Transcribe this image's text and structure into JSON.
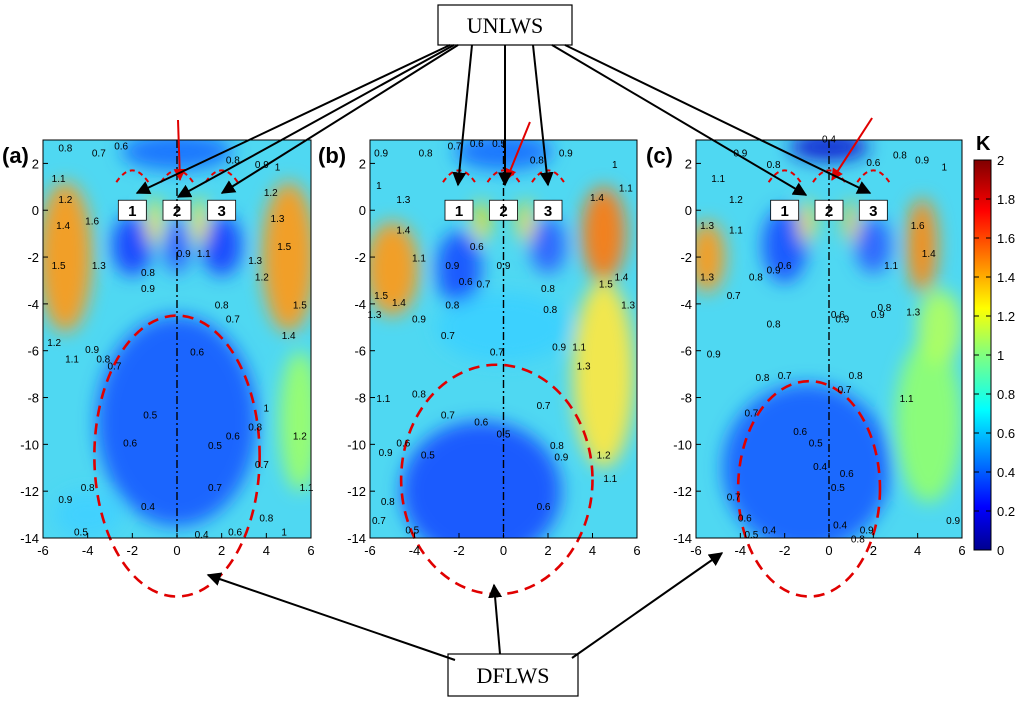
{
  "figure": {
    "top_label": "UNLWS",
    "bottom_label": "DFLWS"
  },
  "chart_data": [
    {
      "type": "heatmap",
      "panel_label": "(a)",
      "xlim": [
        -6,
        6
      ],
      "ylim": [
        -14,
        3
      ],
      "x_ticks": [
        -6,
        -4,
        -2,
        0,
        2,
        4,
        6
      ],
      "y_ticks": [
        2,
        0,
        -2,
        -4,
        -6,
        -8,
        -10,
        -12,
        -14
      ],
      "building_labels": [
        "1",
        "2",
        "3"
      ],
      "building_x": [
        -2,
        0,
        2
      ],
      "contour_labels": [
        {
          "x": -5.0,
          "y": 2.5,
          "text": "0.8"
        },
        {
          "x": -3.5,
          "y": 2.3,
          "text": "0.7"
        },
        {
          "x": -2.5,
          "y": 2.6,
          "text": "0.6"
        },
        {
          "x": -5.3,
          "y": 1.2,
          "text": "1.1"
        },
        {
          "x": -5.0,
          "y": 0.3,
          "text": "1.2"
        },
        {
          "x": -5.1,
          "y": -0.8,
          "text": "1.4"
        },
        {
          "x": -3.8,
          "y": -0.6,
          "text": "1.6"
        },
        {
          "x": -5.3,
          "y": -2.5,
          "text": "1.5"
        },
        {
          "x": -3.5,
          "y": -2.5,
          "text": "1.3"
        },
        {
          "x": -1.3,
          "y": -2.8,
          "text": "0.8"
        },
        {
          "x": -1.3,
          "y": -3.5,
          "text": "0.9"
        },
        {
          "x": 0.3,
          "y": -2.0,
          "text": "0.9"
        },
        {
          "x": 1.2,
          "y": -2.0,
          "text": "1.1"
        },
        {
          "x": 2.5,
          "y": 2.0,
          "text": "0.8"
        },
        {
          "x": 3.8,
          "y": 1.8,
          "text": "0.9"
        },
        {
          "x": 4.5,
          "y": 1.7,
          "text": "1"
        },
        {
          "x": 4.2,
          "y": 0.6,
          "text": "1.2"
        },
        {
          "x": 4.5,
          "y": -0.5,
          "text": "1.3"
        },
        {
          "x": 4.8,
          "y": -1.7,
          "text": "1.5"
        },
        {
          "x": 3.5,
          "y": -2.3,
          "text": "1.3"
        },
        {
          "x": 3.8,
          "y": -3.0,
          "text": "1.2"
        },
        {
          "x": 5.5,
          "y": -4.2,
          "text": "1.5"
        },
        {
          "x": 5.0,
          "y": -5.5,
          "text": "1.4"
        },
        {
          "x": 2.0,
          "y": -4.2,
          "text": "0.8"
        },
        {
          "x": 2.5,
          "y": -4.8,
          "text": "0.7"
        },
        {
          "x": 0.9,
          "y": -6.2,
          "text": "0.6"
        },
        {
          "x": -5.5,
          "y": -5.8,
          "text": "1.2"
        },
        {
          "x": -4.7,
          "y": -6.5,
          "text": "1.1"
        },
        {
          "x": -3.8,
          "y": -6.1,
          "text": "0.9"
        },
        {
          "x": -3.3,
          "y": -6.5,
          "text": "0.8"
        },
        {
          "x": -2.8,
          "y": -6.8,
          "text": "0.7"
        },
        {
          "x": -1.2,
          "y": -8.9,
          "text": "0.5"
        },
        {
          "x": -2.1,
          "y": -10.1,
          "text": "0.6"
        },
        {
          "x": 1.7,
          "y": -10.2,
          "text": "0.5"
        },
        {
          "x": 2.5,
          "y": -9.8,
          "text": "0.6"
        },
        {
          "x": 3.5,
          "y": -9.4,
          "text": "0.8"
        },
        {
          "x": 4.0,
          "y": -8.6,
          "text": "1"
        },
        {
          "x": 5.5,
          "y": -9.8,
          "text": "1.2"
        },
        {
          "x": 3.8,
          "y": -11.0,
          "text": "0.7"
        },
        {
          "x": 1.7,
          "y": -12.0,
          "text": "0.7"
        },
        {
          "x": -5.0,
          "y": -12.5,
          "text": "0.9"
        },
        {
          "x": -4.0,
          "y": -12.0,
          "text": "0.8"
        },
        {
          "x": -1.3,
          "y": -12.8,
          "text": "0.4"
        },
        {
          "x": 1.1,
          "y": -14.0,
          "text": "0.4"
        },
        {
          "x": 2.6,
          "y": -13.9,
          "text": "0.6"
        },
        {
          "x": 4.0,
          "y": -13.3,
          "text": "0.8"
        },
        {
          "x": 4.8,
          "y": -13.9,
          "text": "1"
        },
        {
          "x": 5.8,
          "y": -12.0,
          "text": "1.1"
        },
        {
          "x": -4.3,
          "y": -13.9,
          "text": "0.5"
        }
      ]
    },
    {
      "type": "heatmap",
      "panel_label": "(b)",
      "xlim": [
        -6,
        6
      ],
      "ylim": [
        -14,
        3
      ],
      "x_ticks": [
        -6,
        -4,
        -2,
        0,
        2,
        4,
        6
      ],
      "y_ticks": [
        2,
        0,
        -2,
        -4,
        -6,
        -8,
        -10,
        -12,
        -14
      ],
      "building_labels": [
        "1",
        "2",
        "3"
      ],
      "building_x": [
        -2,
        0,
        2
      ],
      "contour_labels": [
        {
          "x": -5.5,
          "y": 2.3,
          "text": "0.9"
        },
        {
          "x": -3.5,
          "y": 2.3,
          "text": "0.8"
        },
        {
          "x": -2.2,
          "y": 2.6,
          "text": "0.7"
        },
        {
          "x": -1.2,
          "y": 2.7,
          "text": "0.6"
        },
        {
          "x": -0.2,
          "y": 2.7,
          "text": "0.5"
        },
        {
          "x": 1.5,
          "y": 2.0,
          "text": "0.8"
        },
        {
          "x": 2.8,
          "y": 2.3,
          "text": "0.9"
        },
        {
          "x": 5.0,
          "y": 1.8,
          "text": "1"
        },
        {
          "x": 5.5,
          "y": 0.8,
          "text": "1.1"
        },
        {
          "x": -5.6,
          "y": 0.9,
          "text": "1"
        },
        {
          "x": -4.5,
          "y": 0.3,
          "text": "1.3"
        },
        {
          "x": -4.5,
          "y": -1.0,
          "text": "1.4"
        },
        {
          "x": -3.8,
          "y": -2.2,
          "text": "1.1"
        },
        {
          "x": -2.3,
          "y": -2.5,
          "text": "0.9"
        },
        {
          "x": -1.2,
          "y": -1.7,
          "text": "0.6"
        },
        {
          "x": -1.7,
          "y": -3.2,
          "text": "0.6"
        },
        {
          "x": -0.9,
          "y": -3.3,
          "text": "0.7"
        },
        {
          "x": 0.0,
          "y": -2.5,
          "text": "0.9"
        },
        {
          "x": 2.0,
          "y": -3.5,
          "text": "0.8"
        },
        {
          "x": 4.2,
          "y": 0.4,
          "text": "1.4"
        },
        {
          "x": 4.6,
          "y": -3.3,
          "text": "1.5"
        },
        {
          "x": 5.3,
          "y": -3.0,
          "text": "1.4"
        },
        {
          "x": 5.6,
          "y": -4.2,
          "text": "1.3"
        },
        {
          "x": -5.5,
          "y": -3.8,
          "text": "1.5"
        },
        {
          "x": -4.7,
          "y": -4.1,
          "text": "1.4"
        },
        {
          "x": -5.8,
          "y": -4.6,
          "text": "1.3"
        },
        {
          "x": -3.8,
          "y": -4.8,
          "text": "0.9"
        },
        {
          "x": -2.5,
          "y": -5.5,
          "text": "0.7"
        },
        {
          "x": -2.3,
          "y": -4.2,
          "text": "0.8"
        },
        {
          "x": -0.3,
          "y": -6.2,
          "text": "0.7"
        },
        {
          "x": 2.1,
          "y": -4.4,
          "text": "0.8"
        },
        {
          "x": 2.5,
          "y": -6.0,
          "text": "0.9"
        },
        {
          "x": 3.4,
          "y": -6.0,
          "text": "1.1"
        },
        {
          "x": 3.6,
          "y": -6.8,
          "text": "1.3"
        },
        {
          "x": -5.4,
          "y": -8.2,
          "text": "1.1"
        },
        {
          "x": -3.8,
          "y": -8.0,
          "text": "0.8"
        },
        {
          "x": -2.5,
          "y": -8.9,
          "text": "0.7"
        },
        {
          "x": -1.0,
          "y": -9.2,
          "text": "0.6"
        },
        {
          "x": 0.0,
          "y": -9.7,
          "text": "0.5"
        },
        {
          "x": 1.8,
          "y": -8.5,
          "text": "0.7"
        },
        {
          "x": 2.4,
          "y": -10.2,
          "text": "0.8"
        },
        {
          "x": 2.6,
          "y": -10.7,
          "text": "0.9"
        },
        {
          "x": 4.5,
          "y": -10.6,
          "text": "1.2"
        },
        {
          "x": 4.8,
          "y": -11.6,
          "text": "1.1"
        },
        {
          "x": -5.3,
          "y": -10.5,
          "text": "0.9"
        },
        {
          "x": -4.5,
          "y": -10.1,
          "text": "0.6"
        },
        {
          "x": -3.4,
          "y": -10.6,
          "text": "0.5"
        },
        {
          "x": -5.2,
          "y": -12.6,
          "text": "0.8"
        },
        {
          "x": -5.6,
          "y": -13.4,
          "text": "0.7"
        },
        {
          "x": -4.1,
          "y": -13.8,
          "text": "0.5"
        },
        {
          "x": 1.8,
          "y": -12.8,
          "text": "0.6"
        }
      ]
    },
    {
      "type": "heatmap",
      "panel_label": "(c)",
      "xlim": [
        -6,
        6
      ],
      "ylim": [
        -14,
        3
      ],
      "x_ticks": [
        -6,
        -4,
        -2,
        0,
        2,
        4,
        6
      ],
      "y_ticks": [
        2,
        0,
        -2,
        -4,
        -6,
        -8,
        -10,
        -12,
        -14
      ],
      "building_labels": [
        "1",
        "2",
        "3"
      ],
      "building_x": [
        -2,
        0,
        2
      ],
      "contour_labels": [
        {
          "x": 0.0,
          "y": 2.9,
          "text": "0.4"
        },
        {
          "x": -4.0,
          "y": 2.3,
          "text": "0.9"
        },
        {
          "x": -2.5,
          "y": 1.8,
          "text": "0.8"
        },
        {
          "x": 2.0,
          "y": 1.9,
          "text": "0.6"
        },
        {
          "x": 3.2,
          "y": 2.2,
          "text": "0.8"
        },
        {
          "x": 4.2,
          "y": 2.0,
          "text": "0.9"
        },
        {
          "x": 5.2,
          "y": 1.7,
          "text": "1"
        },
        {
          "x": -5.0,
          "y": 1.2,
          "text": "1.1"
        },
        {
          "x": -4.2,
          "y": 0.3,
          "text": "1.2"
        },
        {
          "x": -5.5,
          "y": -0.8,
          "text": "1.3"
        },
        {
          "x": -4.2,
          "y": -1.0,
          "text": "1.1"
        },
        {
          "x": -5.5,
          "y": -3.0,
          "text": "1.3"
        },
        {
          "x": -3.3,
          "y": -3.0,
          "text": "0.8"
        },
        {
          "x": -2.5,
          "y": -2.7,
          "text": "0.9"
        },
        {
          "x": -2.0,
          "y": -2.5,
          "text": "0.6"
        },
        {
          "x": -4.3,
          "y": -3.8,
          "text": "0.7"
        },
        {
          "x": 2.8,
          "y": -2.5,
          "text": "1.1"
        },
        {
          "x": 4.0,
          "y": -0.8,
          "text": "1.6"
        },
        {
          "x": 4.5,
          "y": -2.0,
          "text": "1.4"
        },
        {
          "x": 3.8,
          "y": -4.5,
          "text": "1.3"
        },
        {
          "x": 2.5,
          "y": -4.3,
          "text": "0.8"
        },
        {
          "x": 2.2,
          "y": -4.6,
          "text": "0.9"
        },
        {
          "x": 0.4,
          "y": -4.6,
          "text": "0.6"
        },
        {
          "x": 0.6,
          "y": -4.8,
          "text": "0.9"
        },
        {
          "x": -2.5,
          "y": -5.0,
          "text": "0.8"
        },
        {
          "x": -5.2,
          "y": -6.3,
          "text": "0.9"
        },
        {
          "x": -3.0,
          "y": -7.3,
          "text": "0.8"
        },
        {
          "x": -2.0,
          "y": -7.2,
          "text": "0.7"
        },
        {
          "x": 0.7,
          "y": -7.8,
          "text": "0.7"
        },
        {
          "x": 1.2,
          "y": -7.2,
          "text": "0.8"
        },
        {
          "x": 3.5,
          "y": -8.2,
          "text": "1.1"
        },
        {
          "x": -3.5,
          "y": -8.8,
          "text": "0.7"
        },
        {
          "x": -1.3,
          "y": -9.6,
          "text": "0.6"
        },
        {
          "x": -0.6,
          "y": -10.1,
          "text": "0.5"
        },
        {
          "x": -0.4,
          "y": -11.1,
          "text": "0.4"
        },
        {
          "x": 0.8,
          "y": -11.4,
          "text": "0.6"
        },
        {
          "x": 0.4,
          "y": -12.0,
          "text": "0.5"
        },
        {
          "x": -4.3,
          "y": -12.4,
          "text": "0.7"
        },
        {
          "x": -3.8,
          "y": -13.3,
          "text": "0.6"
        },
        {
          "x": -3.5,
          "y": -14.0,
          "text": "0.5"
        },
        {
          "x": -2.7,
          "y": -13.8,
          "text": "0.4"
        },
        {
          "x": 0.5,
          "y": -13.6,
          "text": "0.4"
        },
        {
          "x": 1.3,
          "y": -14.2,
          "text": "0.8"
        },
        {
          "x": 1.7,
          "y": -13.8,
          "text": "0.9"
        },
        {
          "x": 5.6,
          "y": -13.4,
          "text": "0.9"
        }
      ]
    }
  ],
  "colorbar": {
    "title": "K",
    "range": [
      0,
      2
    ],
    "ticks": [
      "2",
      "1.8",
      "1.6",
      "1.4",
      "1.2",
      "1",
      "0.8",
      "0.6",
      "0.4",
      "0.2",
      "0"
    ],
    "colormap": [
      "#00008f",
      "#0000ff",
      "#0080ff",
      "#00ffff",
      "#80ff80",
      "#ffff00",
      "#ff8000",
      "#ff0000",
      "#800000"
    ]
  }
}
